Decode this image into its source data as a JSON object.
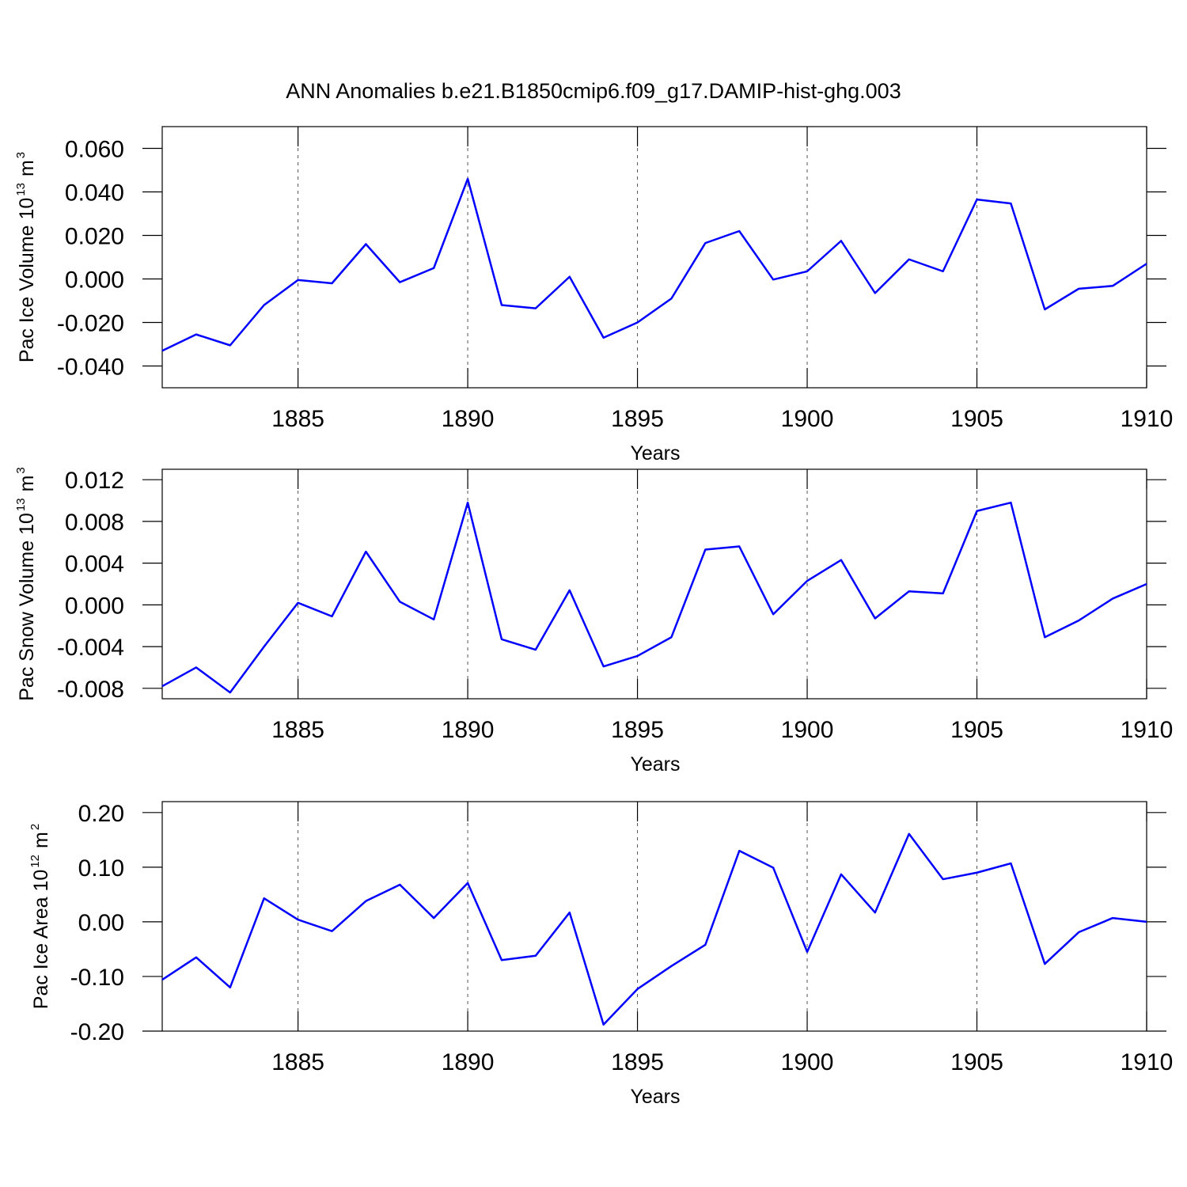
{
  "title": "ANN Anomalies b.e21.B1850cmip6.f09_g17.DAMIP-hist-ghg.003",
  "chart_data": [
    {
      "type": "line",
      "xlabel": "Years",
      "ylabel": [
        "Pac Ice Volume 10",
        "13",
        "m",
        "3"
      ],
      "color": "#0000ff",
      "grid": "x",
      "x": [
        1881,
        1882,
        1883,
        1884,
        1885,
        1886,
        1887,
        1888,
        1889,
        1890,
        1891,
        1892,
        1893,
        1894,
        1895,
        1896,
        1897,
        1898,
        1899,
        1900,
        1901,
        1902,
        1903,
        1904,
        1905,
        1906,
        1907,
        1908,
        1909,
        1910
      ],
      "values": [
        -0.033,
        -0.0255,
        -0.0305,
        -0.012,
        -0.0005,
        -0.002,
        0.016,
        -0.0015,
        0.005,
        0.046,
        -0.012,
        -0.0135,
        0.001,
        -0.027,
        -0.02,
        -0.009,
        0.0165,
        0.022,
        -0.0003,
        0.0035,
        0.0175,
        -0.0065,
        0.009,
        0.0035,
        0.0365,
        0.0347,
        -0.014,
        -0.0045,
        -0.0032,
        0.007
      ],
      "xlim": [
        1881,
        1910
      ],
      "xticks": [
        1885,
        1890,
        1895,
        1900,
        1905,
        1910
      ],
      "ylim": [
        -0.05,
        0.07
      ],
      "yticks": [
        {
          "value": 0.06,
          "label": "0.060"
        },
        {
          "value": 0.04,
          "label": "0.040"
        },
        {
          "value": 0.02,
          "label": "0.020"
        },
        {
          "value": 0,
          "label": "0.000"
        },
        {
          "value": -0.02,
          "label": "-0.020"
        },
        {
          "value": -0.04,
          "label": "-0.040"
        }
      ]
    },
    {
      "type": "line",
      "xlabel": "Years",
      "ylabel": [
        "Pac Snow Volume 10",
        "13",
        "m",
        "3"
      ],
      "color": "#0000ff",
      "grid": "x",
      "x": [
        1881,
        1882,
        1883,
        1884,
        1885,
        1886,
        1887,
        1888,
        1889,
        1890,
        1891,
        1892,
        1893,
        1894,
        1895,
        1896,
        1897,
        1898,
        1899,
        1900,
        1901,
        1902,
        1903,
        1904,
        1905,
        1906,
        1907,
        1908,
        1909,
        1910
      ],
      "values": [
        -0.0078,
        -0.006,
        -0.0084,
        -0.004,
        0.0002,
        -0.0011,
        0.0051,
        0.0003,
        -0.0014,
        0.0098,
        -0.0033,
        -0.0043,
        0.0014,
        -0.0059,
        -0.0049,
        -0.0031,
        0.0053,
        0.0056,
        -0.0009,
        0.0023,
        0.0043,
        -0.0013,
        0.0013,
        0.0011,
        0.009,
        0.0098,
        -0.0031,
        -0.0015,
        0.0006,
        0.002
      ],
      "xlim": [
        1881,
        1910
      ],
      "xticks": [
        1885,
        1890,
        1895,
        1900,
        1905,
        1910
      ],
      "ylim": [
        -0.009,
        0.013
      ],
      "yticks": [
        {
          "value": 0.012,
          "label": "0.012"
        },
        {
          "value": 0.008,
          "label": "0.008"
        },
        {
          "value": 0.004,
          "label": "0.004"
        },
        {
          "value": 0,
          "label": "0.000"
        },
        {
          "value": -0.004,
          "label": "-0.004"
        },
        {
          "value": -0.008,
          "label": "-0.008"
        }
      ]
    },
    {
      "type": "line",
      "xlabel": "Years",
      "ylabel": [
        "Pac Ice Area 10",
        "12",
        "m",
        "2"
      ],
      "color": "#0000ff",
      "grid": "x",
      "x": [
        1881,
        1882,
        1883,
        1884,
        1885,
        1886,
        1887,
        1888,
        1889,
        1890,
        1891,
        1892,
        1893,
        1894,
        1895,
        1896,
        1897,
        1898,
        1899,
        1900,
        1901,
        1902,
        1903,
        1904,
        1905,
        1906,
        1907,
        1908,
        1909,
        1910
      ],
      "values": [
        -0.106,
        -0.065,
        -0.12,
        0.043,
        0.004,
        -0.017,
        0.038,
        0.068,
        0.007,
        0.071,
        -0.07,
        -0.062,
        0.017,
        -0.188,
        -0.123,
        -0.081,
        -0.042,
        0.13,
        0.099,
        -0.055,
        0.087,
        0.017,
        0.161,
        0.078,
        0.09,
        0.107,
        -0.077,
        -0.019,
        0.007,
        0
      ],
      "xlim": [
        1881,
        1910
      ],
      "xticks": [
        1885,
        1890,
        1895,
        1900,
        1905,
        1910
      ],
      "ylim": [
        -0.2,
        0.22
      ],
      "yticks": [
        {
          "value": 0.2,
          "label": "0.20"
        },
        {
          "value": 0.1,
          "label": "0.10"
        },
        {
          "value": 0,
          "label": "0.00"
        },
        {
          "value": -0.1,
          "label": "-0.10"
        },
        {
          "value": -0.2,
          "label": "-0.20"
        }
      ]
    }
  ]
}
